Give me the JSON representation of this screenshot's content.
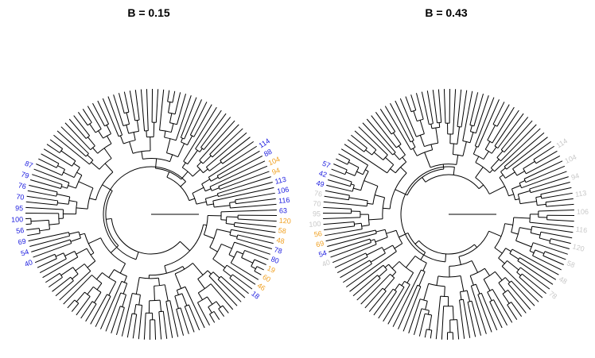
{
  "panels": [
    {
      "title": "B = 0.15",
      "left_labels": {
        "items": [
          {
            "text": "87",
            "color": "blue"
          },
          {
            "text": "79",
            "color": "blue"
          },
          {
            "text": "76",
            "color": "blue"
          },
          {
            "text": "70",
            "color": "blue"
          },
          {
            "text": "95",
            "color": "blue"
          },
          {
            "text": "100",
            "color": "blue"
          },
          {
            "text": "56",
            "color": "blue"
          },
          {
            "text": "69",
            "color": "blue"
          },
          {
            "text": "54",
            "color": "blue"
          },
          {
            "text": "40",
            "color": "blue"
          }
        ]
      },
      "right_labels": {
        "items": [
          {
            "text": "114",
            "color": "blue"
          },
          {
            "text": "88",
            "color": "blue"
          },
          {
            "text": "104",
            "color": "orange"
          },
          {
            "text": "94",
            "color": "orange"
          },
          {
            "text": "113",
            "color": "blue"
          },
          {
            "text": "106",
            "color": "blue"
          },
          {
            "text": "116",
            "color": "blue"
          },
          {
            "text": "63",
            "color": "blue"
          },
          {
            "text": "120",
            "color": "orange"
          },
          {
            "text": "58",
            "color": "orange"
          },
          {
            "text": "48",
            "color": "orange"
          },
          {
            "text": "78",
            "color": "blue"
          },
          {
            "text": "80",
            "color": "blue"
          },
          {
            "text": "19",
            "color": "orange"
          },
          {
            "text": "60",
            "color": "orange"
          },
          {
            "text": "46",
            "color": "orange"
          },
          {
            "text": "18",
            "color": "blue"
          }
        ]
      }
    },
    {
      "title": "B = 0.43",
      "left_labels": {
        "items": [
          {
            "text": "57",
            "color": "blue"
          },
          {
            "text": "42",
            "color": "blue"
          },
          {
            "text": "49",
            "color": "blue"
          },
          {
            "text": "76",
            "color": "gray"
          },
          {
            "text": "70",
            "color": "gray"
          },
          {
            "text": "95",
            "color": "gray"
          },
          {
            "text": "100",
            "color": "gray"
          },
          {
            "text": "56",
            "color": "orange"
          },
          {
            "text": "69",
            "color": "orange"
          },
          {
            "text": "54",
            "color": "blue"
          },
          {
            "text": "40",
            "color": "gray"
          }
        ]
      },
      "right_labels": {
        "items": [
          {
            "text": "114",
            "color": "gray"
          },
          {
            "text": "104",
            "color": "gray"
          },
          {
            "text": "94",
            "color": "gray"
          },
          {
            "text": "113",
            "color": "gray"
          },
          {
            "text": "106",
            "color": "gray"
          },
          {
            "text": "116",
            "color": "gray"
          },
          {
            "text": "120",
            "color": "gray"
          },
          {
            "text": "58",
            "color": "gray"
          },
          {
            "text": "48",
            "color": "gray"
          },
          {
            "text": "78",
            "color": "gray"
          }
        ]
      }
    }
  ],
  "colors": {
    "blue": "#2020e0",
    "orange": "#f0a020",
    "gray": "#c8c8c8",
    "branch": "#000000"
  }
}
